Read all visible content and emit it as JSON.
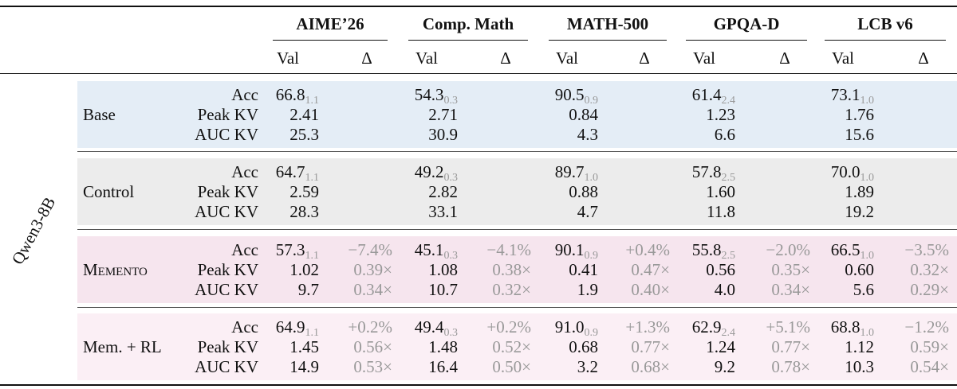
{
  "header": {
    "model": "Qwen3-8B",
    "groups": [
      {
        "name": "AIME’26",
        "columns": [
          "Val",
          "Δ"
        ]
      },
      {
        "name": "Comp. Math",
        "columns": [
          "Val",
          "Δ"
        ]
      },
      {
        "name": "MATH-500",
        "columns": [
          "Val",
          "Δ"
        ]
      },
      {
        "name": "GPQA-D",
        "columns": [
          "Val",
          "Δ"
        ]
      },
      {
        "name": "LCB v6",
        "columns": [
          "Val",
          "Δ"
        ]
      }
    ]
  },
  "blocks": [
    {
      "method": "Base",
      "rows": [
        {
          "metric": "Acc",
          "cells": [
            {
              "val": "66.8",
              "sub": "1.1"
            },
            {
              "val": "54.3",
              "sub": "0.3"
            },
            {
              "val": "90.5",
              "sub": "0.9"
            },
            {
              "val": "61.4",
              "sub": "2.4"
            },
            {
              "val": "73.1",
              "sub": "1.0"
            }
          ]
        },
        {
          "metric": "Peak KV",
          "cells": [
            {
              "val": "2.41"
            },
            {
              "val": "2.71"
            },
            {
              "val": "0.84"
            },
            {
              "val": "1.23"
            },
            {
              "val": "1.76"
            }
          ]
        },
        {
          "metric": "AUC KV",
          "cells": [
            {
              "val": "25.3"
            },
            {
              "val": "30.9"
            },
            {
              "val": "4.3"
            },
            {
              "val": "6.6"
            },
            {
              "val": "15.6"
            }
          ]
        }
      ]
    },
    {
      "method": "Control",
      "rows": [
        {
          "metric": "Acc",
          "cells": [
            {
              "val": "64.7",
              "sub": "1.1"
            },
            {
              "val": "49.2",
              "sub": "0.3"
            },
            {
              "val": "89.7",
              "sub": "1.0"
            },
            {
              "val": "57.8",
              "sub": "2.5"
            },
            {
              "val": "70.0",
              "sub": "1.0"
            }
          ]
        },
        {
          "metric": "Peak KV",
          "cells": [
            {
              "val": "2.59"
            },
            {
              "val": "2.82"
            },
            {
              "val": "0.88"
            },
            {
              "val": "1.60"
            },
            {
              "val": "1.89"
            }
          ]
        },
        {
          "metric": "AUC KV",
          "cells": [
            {
              "val": "28.3"
            },
            {
              "val": "33.1"
            },
            {
              "val": "4.7"
            },
            {
              "val": "11.8"
            },
            {
              "val": "19.2"
            }
          ]
        }
      ]
    },
    {
      "method": "Memento",
      "small_caps": true,
      "rows": [
        {
          "metric": "Acc",
          "cells": [
            {
              "val": "57.3",
              "sub": "1.1",
              "delta": "−7.4%"
            },
            {
              "val": "45.1",
              "sub": "0.3",
              "delta": "−4.1%"
            },
            {
              "val": "90.1",
              "sub": "0.9",
              "delta": "+0.4%"
            },
            {
              "val": "55.8",
              "sub": "2.5",
              "delta": "−2.0%"
            },
            {
              "val": "66.5",
              "sub": "1.0",
              "delta": "−3.5%"
            }
          ]
        },
        {
          "metric": "Peak KV",
          "cells": [
            {
              "val": "1.02",
              "delta": "0.39×"
            },
            {
              "val": "1.08",
              "delta": "0.38×"
            },
            {
              "val": "0.41",
              "delta": "0.47×"
            },
            {
              "val": "0.56",
              "delta": "0.35×"
            },
            {
              "val": "0.60",
              "delta": "0.32×"
            }
          ]
        },
        {
          "metric": "AUC KV",
          "cells": [
            {
              "val": "9.7",
              "delta": "0.34×"
            },
            {
              "val": "10.7",
              "delta": "0.32×"
            },
            {
              "val": "1.9",
              "delta": "0.40×"
            },
            {
              "val": "4.0",
              "delta": "0.34×"
            },
            {
              "val": "5.6",
              "delta": "0.29×"
            }
          ]
        }
      ]
    },
    {
      "method": "Mem. + RL",
      "rows": [
        {
          "metric": "Acc",
          "cells": [
            {
              "val": "64.9",
              "sub": "1.1",
              "delta": "+0.2%"
            },
            {
              "val": "49.4",
              "sub": "0.3",
              "delta": "+0.2%"
            },
            {
              "val": "91.0",
              "sub": "0.9",
              "delta": "+1.3%"
            },
            {
              "val": "62.9",
              "sub": "2.4",
              "delta": "+5.1%"
            },
            {
              "val": "68.8",
              "sub": "1.0",
              "delta": "−1.2%"
            }
          ]
        },
        {
          "metric": "Peak KV",
          "cells": [
            {
              "val": "1.45",
              "delta": "0.56×"
            },
            {
              "val": "1.48",
              "delta": "0.52×"
            },
            {
              "val": "0.68",
              "delta": "0.77×"
            },
            {
              "val": "1.24",
              "delta": "0.77×"
            },
            {
              "val": "1.12",
              "delta": "0.59×"
            }
          ]
        },
        {
          "metric": "AUC KV",
          "cells": [
            {
              "val": "14.9",
              "delta": "0.53×"
            },
            {
              "val": "16.4",
              "delta": "0.50×"
            },
            {
              "val": "3.2",
              "delta": "0.68×"
            },
            {
              "val": "9.2",
              "delta": "0.78×"
            },
            {
              "val": "10.3",
              "delta": "0.54×"
            }
          ]
        }
      ]
    }
  ]
}
